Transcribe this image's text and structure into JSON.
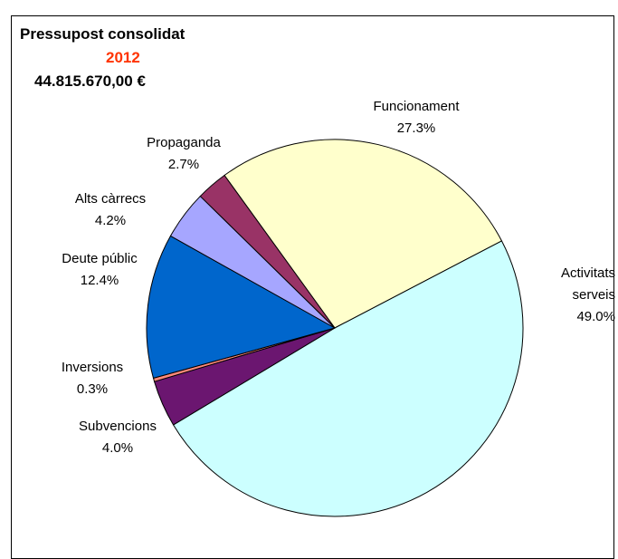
{
  "chart_data": {
    "type": "pie",
    "title": "Pressupost consolidat",
    "subtitle": "2012",
    "total": "44.815.670,00 €",
    "categories": [
      "Funcionament",
      "Activitats serveis",
      "Subvencions",
      "Inversions",
      "Deute públic",
      "Alts càrrecs",
      "Propaganda"
    ],
    "values": [
      27.3,
      49.0,
      4.0,
      0.3,
      12.4,
      4.2,
      2.7
    ],
    "value_labels": [
      "27.3%",
      "49.0%",
      "4.0%",
      "0.3%",
      "12.4%",
      "4.2%",
      "2.7%"
    ],
    "colors": [
      "#ffffcc",
      "#ccffff",
      "#6b1670",
      "#ff8a7a",
      "#0066cc",
      "#a6a6ff",
      "#993366"
    ]
  }
}
